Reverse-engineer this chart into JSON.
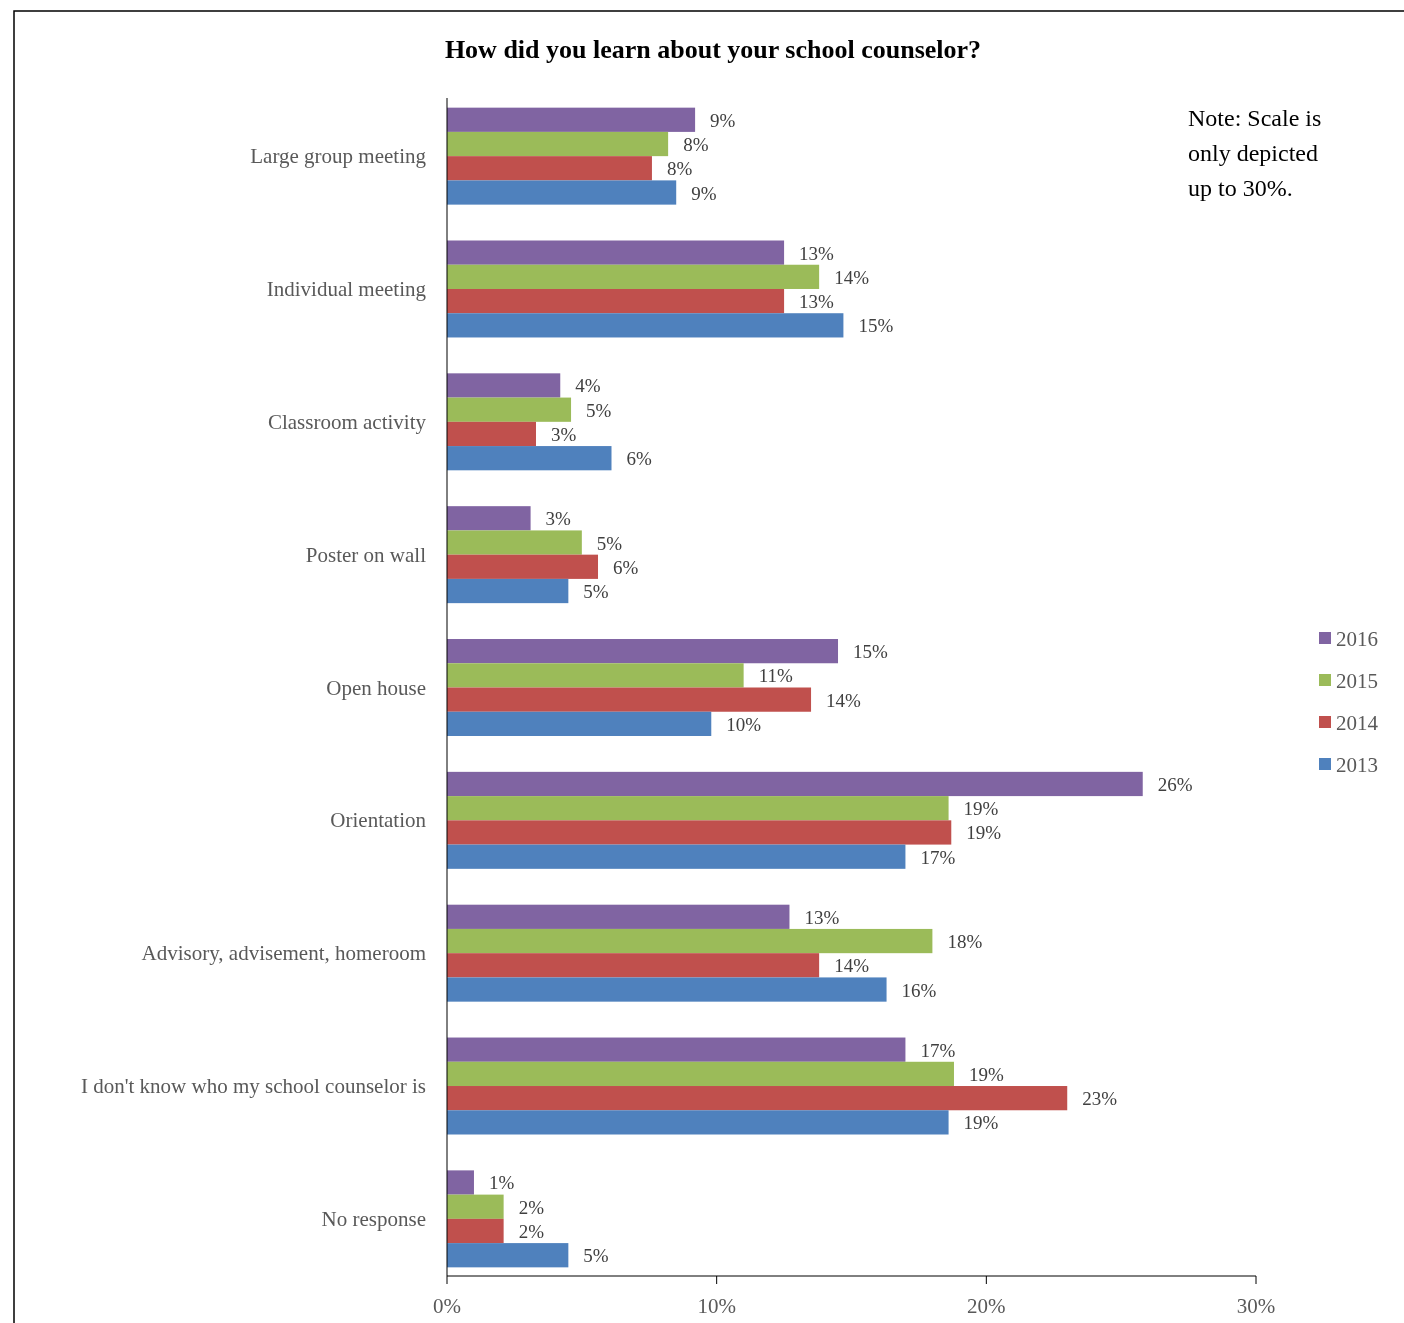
{
  "chart_data": {
    "type": "bar",
    "orientation": "horizontal",
    "title": "How did you learn about your school counselor?",
    "categories": [
      "Large group meeting",
      "Individual meeting",
      "Classroom activity",
      "Poster on wall",
      "Open house",
      "Orientation",
      "Advisory, advisement, homeroom",
      "I don't know who my school counselor is",
      "No response"
    ],
    "series": [
      {
        "name": "2016",
        "color": "#8064a2",
        "values": [
          9.2,
          12.5,
          4.2,
          3.1,
          14.5,
          25.8,
          12.7,
          17.0,
          1.0
        ],
        "value_labels": [
          "9%",
          "13%",
          "4%",
          "3%",
          "15%",
          "26%",
          "13%",
          "17%",
          "1%"
        ]
      },
      {
        "name": "2015",
        "color": "#9bbb59",
        "values": [
          8.2,
          13.8,
          4.6,
          5.0,
          11.0,
          18.6,
          18.0,
          18.8,
          2.1
        ],
        "value_labels": [
          "8%",
          "14%",
          "5%",
          "5%",
          "11%",
          "19%",
          "18%",
          "19%",
          "2%"
        ]
      },
      {
        "name": "2014",
        "color": "#c0504d",
        "values": [
          7.6,
          12.5,
          3.3,
          5.6,
          13.5,
          18.7,
          13.8,
          23.0,
          2.1
        ],
        "value_labels": [
          "8%",
          "13%",
          "3%",
          "6%",
          "14%",
          "19%",
          "14%",
          "23%",
          "2%"
        ]
      },
      {
        "name": "2013",
        "color": "#4f81bd",
        "values": [
          8.5,
          14.7,
          6.1,
          4.5,
          9.8,
          17.0,
          16.3,
          18.6,
          4.5
        ],
        "value_labels": [
          "9%",
          "15%",
          "6%",
          "5%",
          "10%",
          "17%",
          "16%",
          "19%",
          "5%"
        ]
      }
    ],
    "xlim": [
      0,
      30
    ],
    "xticks": [
      {
        "value": 0,
        "label": "0%"
      },
      {
        "value": 10,
        "label": "10%"
      },
      {
        "value": 20,
        "label": "20%"
      },
      {
        "value": 30,
        "label": "30%"
      }
    ],
    "legend": "right",
    "annotations": [
      "Note: Scale is only depicted up to 30%."
    ]
  }
}
